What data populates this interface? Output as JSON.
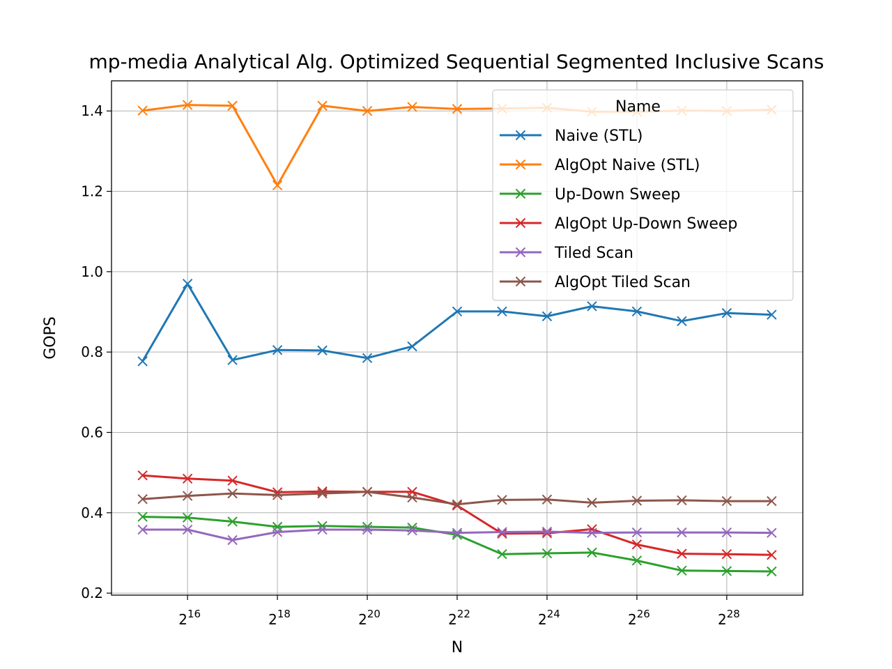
{
  "chart_data": {
    "type": "line",
    "title": "mp-media Analytical Alg. Optimized Sequential Segmented Inclusive Scans",
    "xlabel": "N",
    "ylabel": "GOPS",
    "x_scale": "log2",
    "x": [
      32768,
      65536,
      131072,
      262144,
      524288,
      1048576,
      2097152,
      4194304,
      8388608,
      16777216,
      33554432,
      67108864,
      134217728,
      268435456,
      536870912
    ],
    "x_tick_values": [
      65536,
      262144,
      1048576,
      4194304,
      16777216,
      67108864,
      268435456
    ],
    "x_tick_base": "2",
    "x_tick_exponents": [
      "16",
      "18",
      "20",
      "22",
      "24",
      "26",
      "28"
    ],
    "y_ticks": [
      "0.2",
      "0.4",
      "0.6",
      "0.8",
      "1.0",
      "1.2",
      "1.4"
    ],
    "y_tick_values": [
      0.2,
      0.4,
      0.6,
      0.8,
      1.0,
      1.2,
      1.4
    ],
    "ylim": [
      0.195,
      1.475
    ],
    "grid": true,
    "marker": "x",
    "legend": {
      "title": "Name",
      "placement": "upper right"
    },
    "series": [
      {
        "name": "Naive (STL)",
        "color": "#1f77b4",
        "values": [
          0.777,
          0.97,
          0.78,
          0.805,
          0.804,
          0.785,
          0.814,
          0.901,
          0.901,
          0.889,
          0.914,
          0.901,
          0.877,
          0.897,
          0.893
        ]
      },
      {
        "name": "AlgOpt Naive (STL)",
        "color": "#ff7f0e",
        "values": [
          1.401,
          1.415,
          1.413,
          1.215,
          1.413,
          1.4,
          1.41,
          1.405,
          1.406,
          1.408,
          1.398,
          1.398,
          1.401,
          1.4,
          1.403
        ]
      },
      {
        "name": "Up-Down Sweep",
        "color": "#2ca02c",
        "values": [
          0.39,
          0.388,
          0.378,
          0.365,
          0.367,
          0.365,
          0.363,
          0.345,
          0.297,
          0.299,
          0.301,
          0.281,
          0.256,
          0.255,
          0.254
        ]
      },
      {
        "name": "AlgOpt Up-Down Sweep",
        "color": "#d62728",
        "values": [
          0.493,
          0.485,
          0.48,
          0.451,
          0.453,
          0.452,
          0.452,
          0.418,
          0.348,
          0.349,
          0.359,
          0.321,
          0.298,
          0.297,
          0.295
        ]
      },
      {
        "name": "Tiled Scan",
        "color": "#9467bd",
        "values": [
          0.358,
          0.358,
          0.332,
          0.352,
          0.358,
          0.358,
          0.356,
          0.35,
          0.352,
          0.353,
          0.35,
          0.351,
          0.351,
          0.351,
          0.35
        ]
      },
      {
        "name": "AlgOpt Tiled Scan",
        "color": "#8c564b",
        "values": [
          0.434,
          0.442,
          0.448,
          0.444,
          0.448,
          0.452,
          0.438,
          0.421,
          0.432,
          0.433,
          0.425,
          0.43,
          0.431,
          0.429,
          0.429
        ]
      }
    ]
  }
}
